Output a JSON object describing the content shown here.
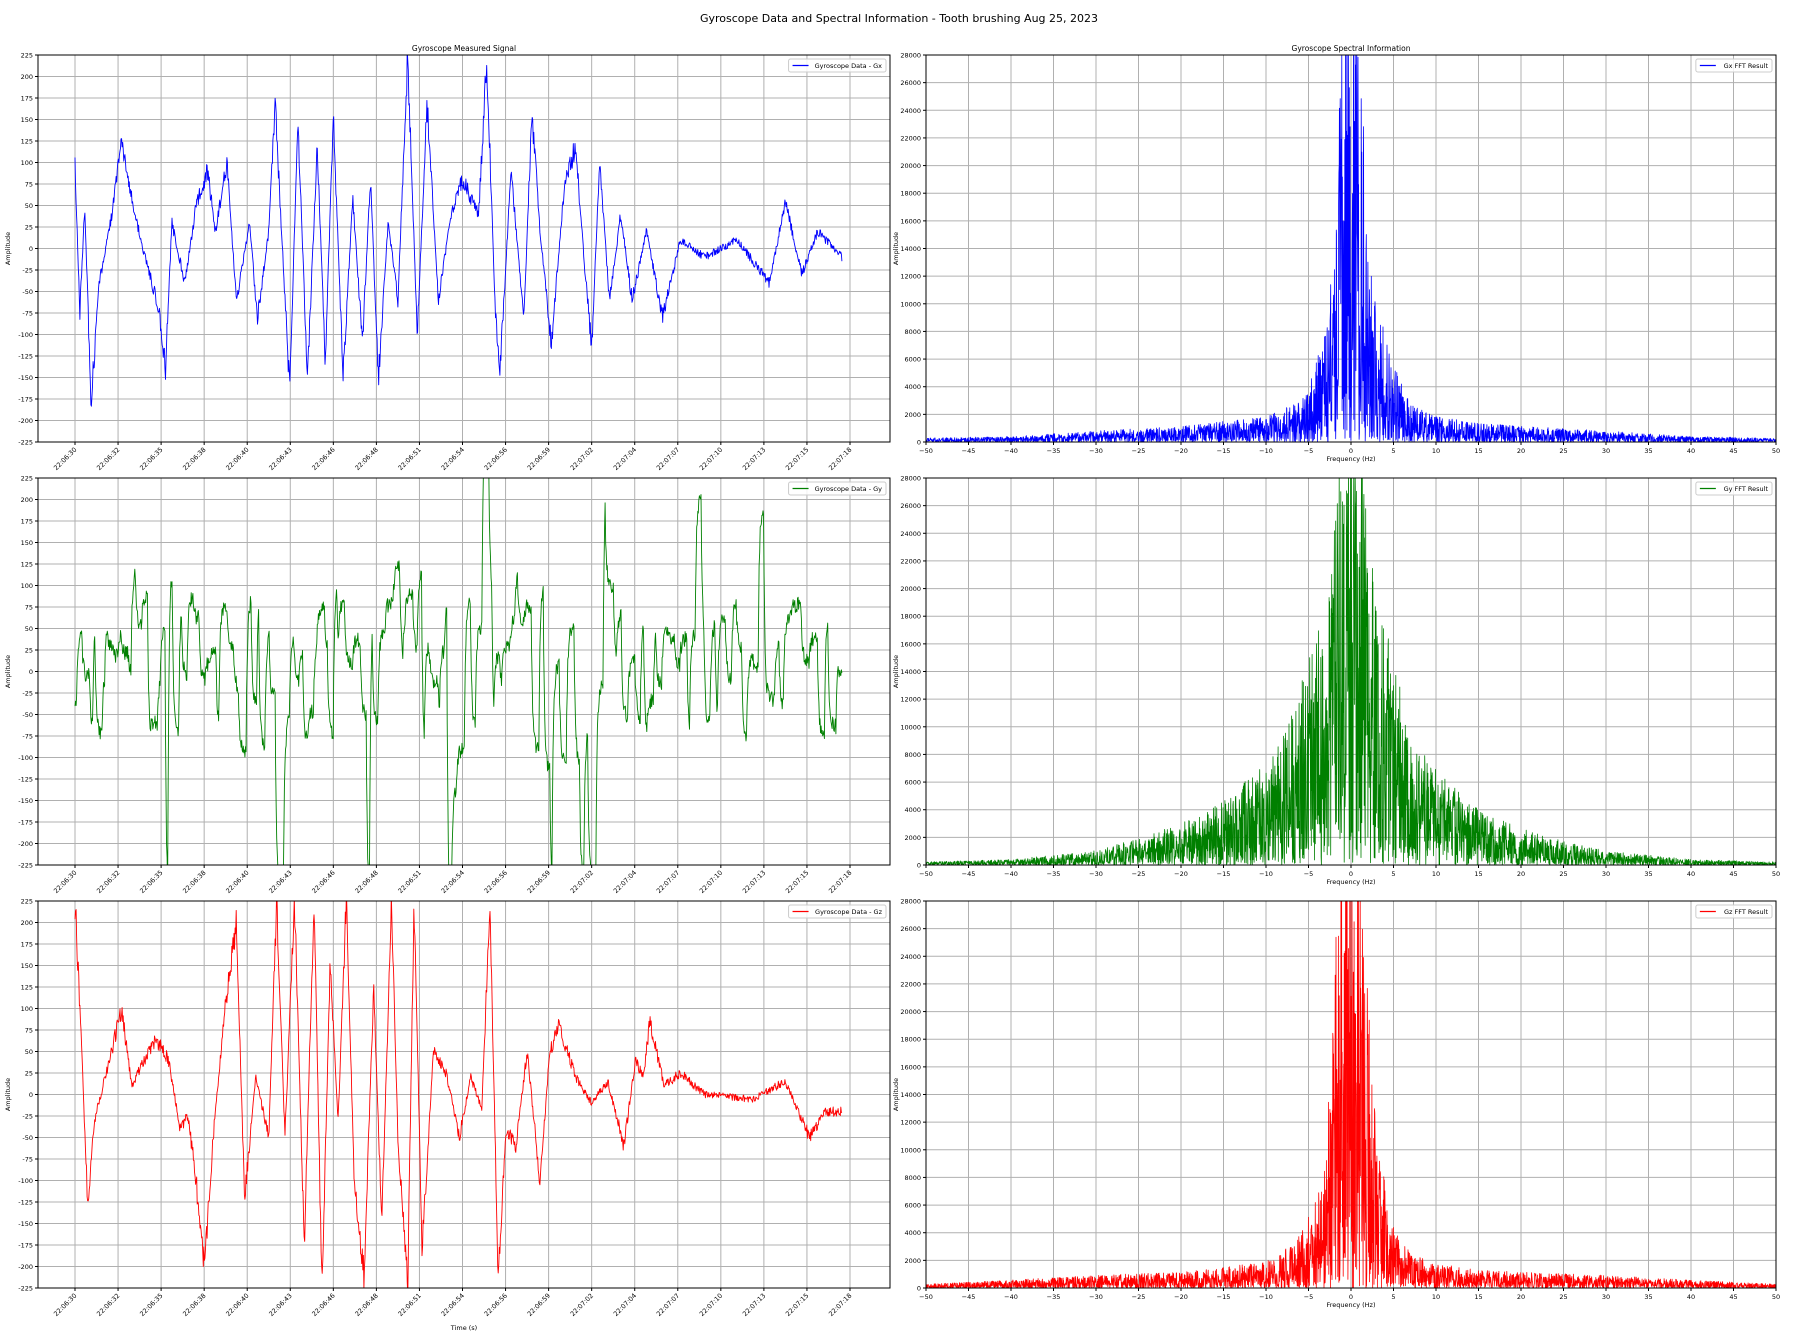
{
  "figure": {
    "suptitle": "Gyroscope Data and Spectral Information - Tooth brushing Aug 25, 2023"
  },
  "colors": {
    "gx": "#0000ff",
    "gy": "#008000",
    "gz": "#ff0000",
    "grid": "#b0b0b0"
  },
  "chart_data": [
    {
      "id": "gx_time",
      "type": "line",
      "title": "Gyroscope Measured Signal",
      "xlabel": "",
      "ylabel": "Amplitude",
      "legend": "Gyroscope Data - Gx",
      "legend_loc": "upper right",
      "color": "#0000ff",
      "grid": true,
      "ylim": [
        -225,
        225
      ],
      "yticks": [
        -225,
        -200,
        -175,
        -150,
        -125,
        -100,
        -75,
        -50,
        -25,
        0,
        25,
        50,
        75,
        100,
        125,
        150,
        175,
        200,
        225
      ],
      "xticklabels": [
        "22:06:30",
        "22:06:32",
        "22:06:35",
        "22:06:38",
        "22:06:40",
        "22:06:43",
        "22:06:46",
        "22:06:48",
        "22:06:51",
        "22:06:54",
        "22:06:56",
        "22:06:59",
        "22:07:02",
        "22:07:04",
        "22:07:07",
        "22:07:10",
        "22:07:13",
        "22:07:15",
        "22:07:18"
      ],
      "keypoints": [
        [
          "22:06:30",
          100
        ],
        [
          "22:06:30.3",
          -75
        ],
        [
          "22:06:30.6",
          50
        ],
        [
          "22:06:31",
          -180
        ],
        [
          "22:06:31.5",
          -40
        ],
        [
          "22:06:32.3",
          40
        ],
        [
          "22:06:32.8",
          125
        ],
        [
          "22:06:33.5",
          60
        ],
        [
          "22:06:34.2",
          0
        ],
        [
          "22:06:35.2",
          -70
        ],
        [
          "22:06:35.6",
          -140
        ],
        [
          "22:06:36",
          30
        ],
        [
          "22:06:36.8",
          -40
        ],
        [
          "22:06:37.5",
          50
        ],
        [
          "22:06:38.2",
          90
        ],
        [
          "22:06:38.7",
          20
        ],
        [
          "22:06:39.4",
          100
        ],
        [
          "22:06:40",
          -60
        ],
        [
          "22:06:40.8",
          30
        ],
        [
          "22:06:41.3",
          -80
        ],
        [
          "22:06:42",
          20
        ],
        [
          "22:06:42.4",
          165
        ],
        [
          "22:06:43.3",
          -165
        ],
        [
          "22:06:43.8",
          150
        ],
        [
          "22:06:44.4",
          -150
        ],
        [
          "22:06:45",
          120
        ],
        [
          "22:06:45.5",
          -130
        ],
        [
          "22:06:46",
          155
        ],
        [
          "22:06:46.6",
          -150
        ],
        [
          "22:06:47.2",
          60
        ],
        [
          "22:06:47.8",
          -110
        ],
        [
          "22:06:48.3",
          80
        ],
        [
          "22:06:48.8",
          -150
        ],
        [
          "22:06:49.4",
          30
        ],
        [
          "22:06:50",
          -60
        ],
        [
          "22:06:50.6",
          225
        ],
        [
          "22:06:51.2",
          -100
        ],
        [
          "22:06:51.8",
          170
        ],
        [
          "22:06:52.5",
          -60
        ],
        [
          "22:06:53.3",
          40
        ],
        [
          "22:06:54",
          80
        ],
        [
          "22:06:55",
          40
        ],
        [
          "22:06:55.5",
          225
        ],
        [
          "22:06:56",
          -60
        ],
        [
          "22:06:56.3",
          -150
        ],
        [
          "22:06:57",
          90
        ],
        [
          "22:06:57.8",
          -80
        ],
        [
          "22:06:58.3",
          160
        ],
        [
          "22:06:58.8",
          20
        ],
        [
          "22:06:59.5",
          -110
        ],
        [
          "22:07:00.3",
          70
        ],
        [
          "22:07:01",
          120
        ],
        [
          "22:07:01.6",
          -30
        ],
        [
          "22:07:02",
          -115
        ],
        [
          "22:07:02.5",
          100
        ],
        [
          "22:07:03.1",
          -60
        ],
        [
          "22:07:03.8",
          40
        ],
        [
          "22:07:04.5",
          -60
        ],
        [
          "22:07:05.4",
          20
        ],
        [
          "22:07:06.4",
          -80
        ],
        [
          "22:07:07.5",
          10
        ],
        [
          "22:07:09",
          -10
        ],
        [
          "22:07:11",
          10
        ],
        [
          "22:07:13",
          -40
        ],
        [
          "22:07:14",
          55
        ],
        [
          "22:07:15",
          -30
        ],
        [
          "22:07:16",
          20
        ],
        [
          "22:07:17.5",
          -10
        ]
      ]
    },
    {
      "id": "gx_fft",
      "type": "line",
      "title": "Gyroscope Spectral Information",
      "xlabel": "Frequency (Hz)",
      "ylabel": "Amplitude",
      "legend": "Gx FFT Result",
      "legend_loc": "upper right",
      "color": "#0000ff",
      "grid": true,
      "xlim": [
        -50,
        50
      ],
      "ylim": [
        0,
        28000
      ],
      "xticks": [
        -50,
        -45,
        -40,
        -35,
        -30,
        -25,
        -20,
        -15,
        -10,
        -5,
        0,
        5,
        10,
        15,
        20,
        25,
        30,
        35,
        40,
        45,
        50
      ],
      "yticks": [
        0,
        2000,
        4000,
        6000,
        8000,
        10000,
        12000,
        14000,
        16000,
        18000,
        20000,
        22000,
        24000,
        26000,
        28000
      ],
      "envelope": [
        [
          -50,
          250
        ],
        [
          -40,
          350
        ],
        [
          -30,
          700
        ],
        [
          -20,
          1000
        ],
        [
          -15,
          1300
        ],
        [
          -10,
          1600
        ],
        [
          -7,
          2300
        ],
        [
          -5,
          3500
        ],
        [
          -3,
          7500
        ],
        [
          -2,
          12000
        ],
        [
          -1,
          28000
        ],
        [
          0,
          28000
        ],
        [
          1,
          28000
        ],
        [
          2,
          12000
        ],
        [
          3,
          8500
        ],
        [
          4,
          7000
        ],
        [
          5,
          5000
        ],
        [
          7,
          2400
        ],
        [
          10,
          1600
        ],
        [
          15,
          1200
        ],
        [
          20,
          1000
        ],
        [
          30,
          700
        ],
        [
          40,
          350
        ],
        [
          50,
          250
        ]
      ]
    },
    {
      "id": "gy_time",
      "type": "line",
      "title": "",
      "xlabel": "",
      "ylabel": "Amplitude",
      "legend": "Gyroscope Data - Gy",
      "legend_loc": "upper right",
      "color": "#008000",
      "grid": true,
      "ylim": [
        -225,
        225
      ],
      "yticks": [
        -225,
        -200,
        -175,
        -150,
        -125,
        -100,
        -75,
        -50,
        -25,
        0,
        25,
        50,
        75,
        100,
        125,
        150,
        175,
        200,
        225
      ],
      "xticklabels": [
        "22:06:30",
        "22:06:32",
        "22:06:35",
        "22:06:38",
        "22:06:40",
        "22:06:43",
        "22:06:46",
        "22:06:48",
        "22:06:51",
        "22:06:54",
        "22:06:56",
        "22:06:59",
        "22:07:02",
        "22:07:04",
        "22:07:07",
        "22:07:10",
        "22:07:13",
        "22:07:15",
        "22:07:18"
      ],
      "amplitude_profile": [
        [
          0,
          150
        ],
        [
          0.08,
          170
        ],
        [
          0.18,
          150
        ],
        [
          0.3,
          130
        ],
        [
          0.42,
          170
        ],
        [
          0.55,
          170
        ],
        [
          0.68,
          130
        ],
        [
          0.8,
          110
        ],
        [
          0.92,
          100
        ],
        [
          1,
          100
        ]
      ]
    },
    {
      "id": "gy_fft",
      "type": "line",
      "title": "",
      "xlabel": "Frequency (Hz)",
      "ylabel": "Amplitude",
      "legend": "Gy FFT Result",
      "legend_loc": "upper right",
      "color": "#008000",
      "grid": true,
      "xlim": [
        -50,
        50
      ],
      "ylim": [
        0,
        28000
      ],
      "xticks": [
        -50,
        -45,
        -40,
        -35,
        -30,
        -25,
        -20,
        -15,
        -10,
        -5,
        0,
        5,
        10,
        15,
        20,
        25,
        30,
        35,
        40,
        45,
        50
      ],
      "yticks": [
        0,
        2000,
        4000,
        6000,
        8000,
        10000,
        12000,
        14000,
        16000,
        18000,
        20000,
        22000,
        24000,
        26000,
        28000
      ],
      "envelope": [
        [
          -50,
          200
        ],
        [
          -40,
          350
        ],
        [
          -30,
          900
        ],
        [
          -25,
          1700
        ],
        [
          -20,
          2600
        ],
        [
          -15,
          4000
        ],
        [
          -10,
          6500
        ],
        [
          -7,
          9500
        ],
        [
          -5,
          13000
        ],
        [
          -3,
          16000
        ],
        [
          -2,
          22000
        ],
        [
          -1,
          28000
        ],
        [
          0,
          28000
        ],
        [
          1,
          28000
        ],
        [
          2,
          22000
        ],
        [
          3,
          16000
        ],
        [
          5,
          13500
        ],
        [
          7,
          8500
        ],
        [
          10,
          6000
        ],
        [
          15,
          3500
        ],
        [
          20,
          2300
        ],
        [
          25,
          1500
        ],
        [
          30,
          900
        ],
        [
          40,
          350
        ],
        [
          50,
          200
        ]
      ]
    },
    {
      "id": "gz_time",
      "type": "line",
      "title": "",
      "xlabel": "Time (s)",
      "ylabel": "Amplitude",
      "legend": "Gyroscope Data - Gz",
      "legend_loc": "upper right",
      "color": "#ff0000",
      "grid": true,
      "ylim": [
        -225,
        225
      ],
      "yticks": [
        -225,
        -200,
        -175,
        -150,
        -125,
        -100,
        -75,
        -50,
        -25,
        0,
        25,
        50,
        75,
        100,
        125,
        150,
        175,
        200,
        225
      ],
      "xticklabels": [
        "22:06:30",
        "22:06:32",
        "22:06:35",
        "22:06:38",
        "22:06:40",
        "22:06:43",
        "22:06:46",
        "22:06:48",
        "22:06:51",
        "22:06:54",
        "22:06:56",
        "22:06:59",
        "22:07:02",
        "22:07:04",
        "22:07:07",
        "22:07:10",
        "22:07:13",
        "22:07:15",
        "22:07:18"
      ],
      "keypoints": [
        [
          "22:06:30",
          225
        ],
        [
          "22:06:30.4",
          60
        ],
        [
          "22:06:30.8",
          -135
        ],
        [
          "22:06:31.2",
          -30
        ],
        [
          "22:06:32",
          30
        ],
        [
          "22:06:32.9",
          100
        ],
        [
          "22:06:33.5",
          10
        ],
        [
          "22:06:34.3",
          40
        ],
        [
          "22:06:35",
          65
        ],
        [
          "22:06:35.8",
          40
        ],
        [
          "22:06:36.5",
          -40
        ],
        [
          "22:06:37",
          -25
        ],
        [
          "22:06:37.5",
          -100
        ],
        [
          "22:06:38",
          -200
        ],
        [
          "22:06:38.6",
          -40
        ],
        [
          "22:06:39.3",
          100
        ],
        [
          "22:06:40",
          200
        ],
        [
          "22:06:40.5",
          -120
        ],
        [
          "22:06:41.2",
          20
        ],
        [
          "22:06:42",
          -50
        ],
        [
          "22:06:42.5",
          225
        ],
        [
          "22:06:43",
          -50
        ],
        [
          "22:06:43.6",
          225
        ],
        [
          "22:06:44.2",
          -175
        ],
        [
          "22:06:44.8",
          225
        ],
        [
          "22:06:45.3",
          -225
        ],
        [
          "22:06:45.8",
          150
        ],
        [
          "22:06:46.3",
          -30
        ],
        [
          "22:06:46.8",
          225
        ],
        [
          "22:06:47.3",
          -100
        ],
        [
          "22:06:47.9",
          -210
        ],
        [
          "22:06:48.5",
          125
        ],
        [
          "22:06:49",
          -150
        ],
        [
          "22:06:49.6",
          225
        ],
        [
          "22:06:50",
          -50
        ],
        [
          "22:06:50.6",
          -225
        ],
        [
          "22:06:51",
          225
        ],
        [
          "22:06:51.5",
          -180
        ],
        [
          "22:06:52.2",
          50
        ],
        [
          "22:06:53",
          25
        ],
        [
          "22:06:53.8",
          -50
        ],
        [
          "22:06:54.5",
          20
        ],
        [
          "22:06:55.2",
          -15
        ],
        [
          "22:06:55.7",
          225
        ],
        [
          "22:06:56.2",
          -210
        ],
        [
          "22:06:56.7",
          -40
        ],
        [
          "22:06:57.3",
          -60
        ],
        [
          "22:06:58",
          50
        ],
        [
          "22:06:58.8",
          -100
        ],
        [
          "22:06:59.4",
          50
        ],
        [
          "22:07:00",
          80
        ],
        [
          "22:07:01",
          20
        ],
        [
          "22:07:02",
          -10
        ],
        [
          "22:07:03",
          15
        ],
        [
          "22:07:04",
          -60
        ],
        [
          "22:07:04.7",
          40
        ],
        [
          "22:07:05.2",
          20
        ],
        [
          "22:07:05.6",
          85
        ],
        [
          "22:07:06.5",
          10
        ],
        [
          "22:07:07.5",
          25
        ],
        [
          "22:07:09",
          0
        ],
        [
          "22:07:12",
          -5
        ],
        [
          "22:07:14",
          15
        ],
        [
          "22:07:15.5",
          -50
        ],
        [
          "22:07:16.5",
          -20
        ],
        [
          "22:07:17.5",
          -20
        ]
      ]
    },
    {
      "id": "gz_fft",
      "type": "line",
      "title": "",
      "xlabel": "Frequency (Hz)",
      "ylabel": "Amplitude",
      "legend": "Gz FFT Result",
      "legend_loc": "upper right",
      "color": "#ff0000",
      "grid": true,
      "xlim": [
        -50,
        50
      ],
      "ylim": [
        0,
        28000
      ],
      "xticks": [
        -50,
        -45,
        -40,
        -35,
        -30,
        -25,
        -20,
        -15,
        -10,
        -5,
        0,
        5,
        10,
        15,
        20,
        25,
        30,
        35,
        40,
        45,
        50
      ],
      "yticks": [
        0,
        2000,
        4000,
        6000,
        8000,
        10000,
        12000,
        14000,
        16000,
        18000,
        20000,
        22000,
        24000,
        26000,
        28000
      ],
      "envelope": [
        [
          -50,
          250
        ],
        [
          -40,
          500
        ],
        [
          -30,
          800
        ],
        [
          -20,
          1000
        ],
        [
          -15,
          1300
        ],
        [
          -10,
          1700
        ],
        [
          -7,
          2700
        ],
        [
          -5,
          4500
        ],
        [
          -3,
          8000
        ],
        [
          -2,
          20000
        ],
        [
          -1.5,
          28000
        ],
        [
          0,
          28000
        ],
        [
          1.5,
          28000
        ],
        [
          2,
          20000
        ],
        [
          3,
          9500
        ],
        [
          4,
          7000
        ],
        [
          5,
          4000
        ],
        [
          7,
          2200
        ],
        [
          10,
          1500
        ],
        [
          15,
          1200
        ],
        [
          20,
          1000
        ],
        [
          30,
          800
        ],
        [
          40,
          500
        ],
        [
          50,
          250
        ]
      ]
    }
  ]
}
